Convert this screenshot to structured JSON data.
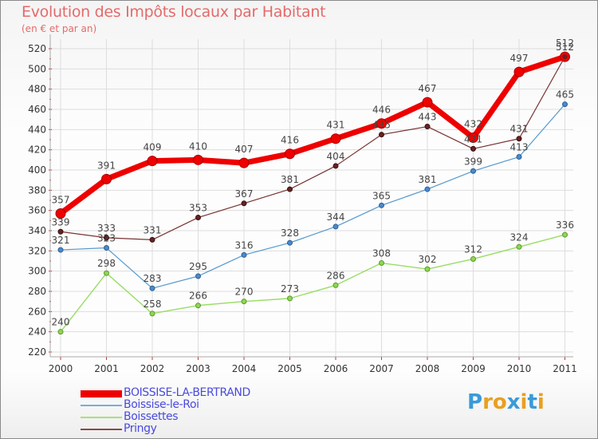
{
  "title": "Evolution des Impôts locaux par Habitant",
  "subtitle": "(en € et par an)",
  "logo_text": "Proxiti",
  "chart_data": {
    "type": "line",
    "title": "Evolution des Impôts locaux par Habitant",
    "subtitle": "(en € et par an)",
    "x": [
      "2000",
      "2001",
      "2002",
      "2003",
      "2004",
      "2005",
      "2006",
      "2007",
      "2008",
      "2009",
      "2010",
      "2011"
    ],
    "ylim": [
      220,
      520
    ],
    "yticks": [
      220,
      240,
      260,
      280,
      300,
      320,
      340,
      360,
      380,
      400,
      420,
      440,
      460,
      480,
      500,
      520
    ],
    "grid": true,
    "legend_position": "bottom-left",
    "series": [
      {
        "name": "BOISSISE-LA-BERTRAND",
        "color": "#ee0000",
        "values": [
          357,
          391,
          409,
          410,
          407,
          416,
          431,
          446,
          467,
          432,
          497,
          512
        ]
      },
      {
        "name": "Boissise-le-Roi",
        "color": "#5599cc",
        "values": [
          321,
          323,
          283,
          295,
          316,
          328,
          344,
          365,
          381,
          399,
          413,
          465
        ]
      },
      {
        "name": "Boissettes",
        "color": "#99dd66",
        "values": [
          240,
          298,
          258,
          266,
          270,
          273,
          286,
          308,
          302,
          312,
          324,
          336
        ]
      },
      {
        "name": "Pringy",
        "color": "#773333",
        "values": [
          339,
          333,
          331,
          353,
          367,
          381,
          404,
          435,
          443,
          421,
          431,
          512
        ]
      }
    ]
  }
}
